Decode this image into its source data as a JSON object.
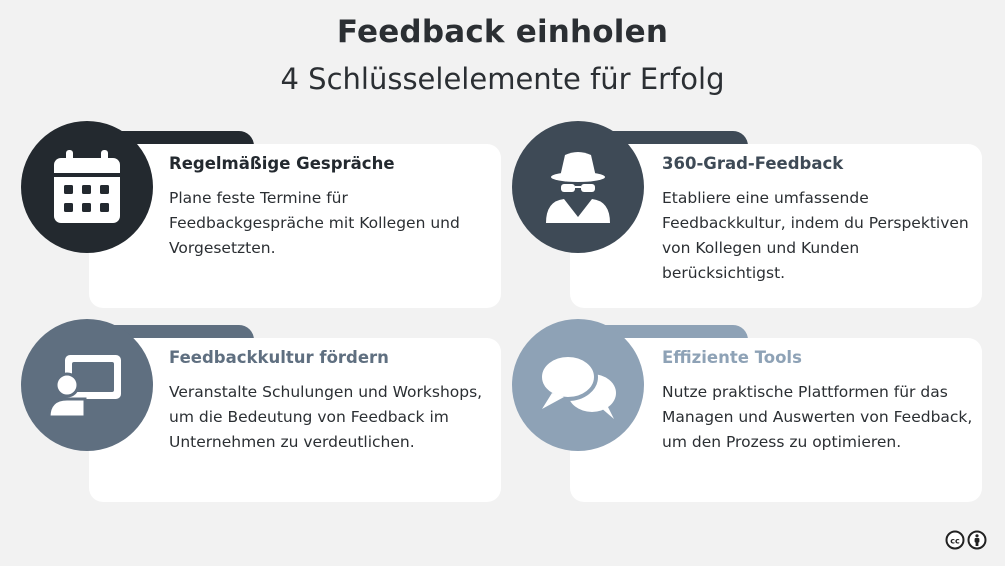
{
  "header": {
    "title": "Feedback einholen",
    "subtitle": "4 Schlüsselelemente für Erfolg"
  },
  "cards": [
    {
      "title": "Regelmäßige Gespräche",
      "text": "Plane feste Termine für Feedbackgespräche mit Kollegen und Vorgesetzten.",
      "icon": "calendar-icon",
      "color": "#23292f"
    },
    {
      "title": "360-Grad-Feedback",
      "text": "Etabliere eine umfassende Feedbackkultur, indem du Perspektiven von Kollegen und Kunden berücksichtigst.",
      "icon": "incognito-person-icon",
      "color": "#3e4a56"
    },
    {
      "title": "Feedbackkultur fördern",
      "text": "Veranstalte Schulungen und Workshops, um die Bedeutung von Feedback im Unternehmen zu verdeutlichen.",
      "icon": "presentation-icon",
      "color": "#5f6f80"
    },
    {
      "title": "Effiziente Tools",
      "text": "Nutze praktische Plattformen für das Managen und Auswerten von Feedback, um den Prozess zu optimieren.",
      "icon": "chat-bubbles-icon",
      "color": "#8ea2b6"
    }
  ],
  "license": {
    "icons": [
      "creative-commons-icon",
      "attribution-icon"
    ]
  }
}
